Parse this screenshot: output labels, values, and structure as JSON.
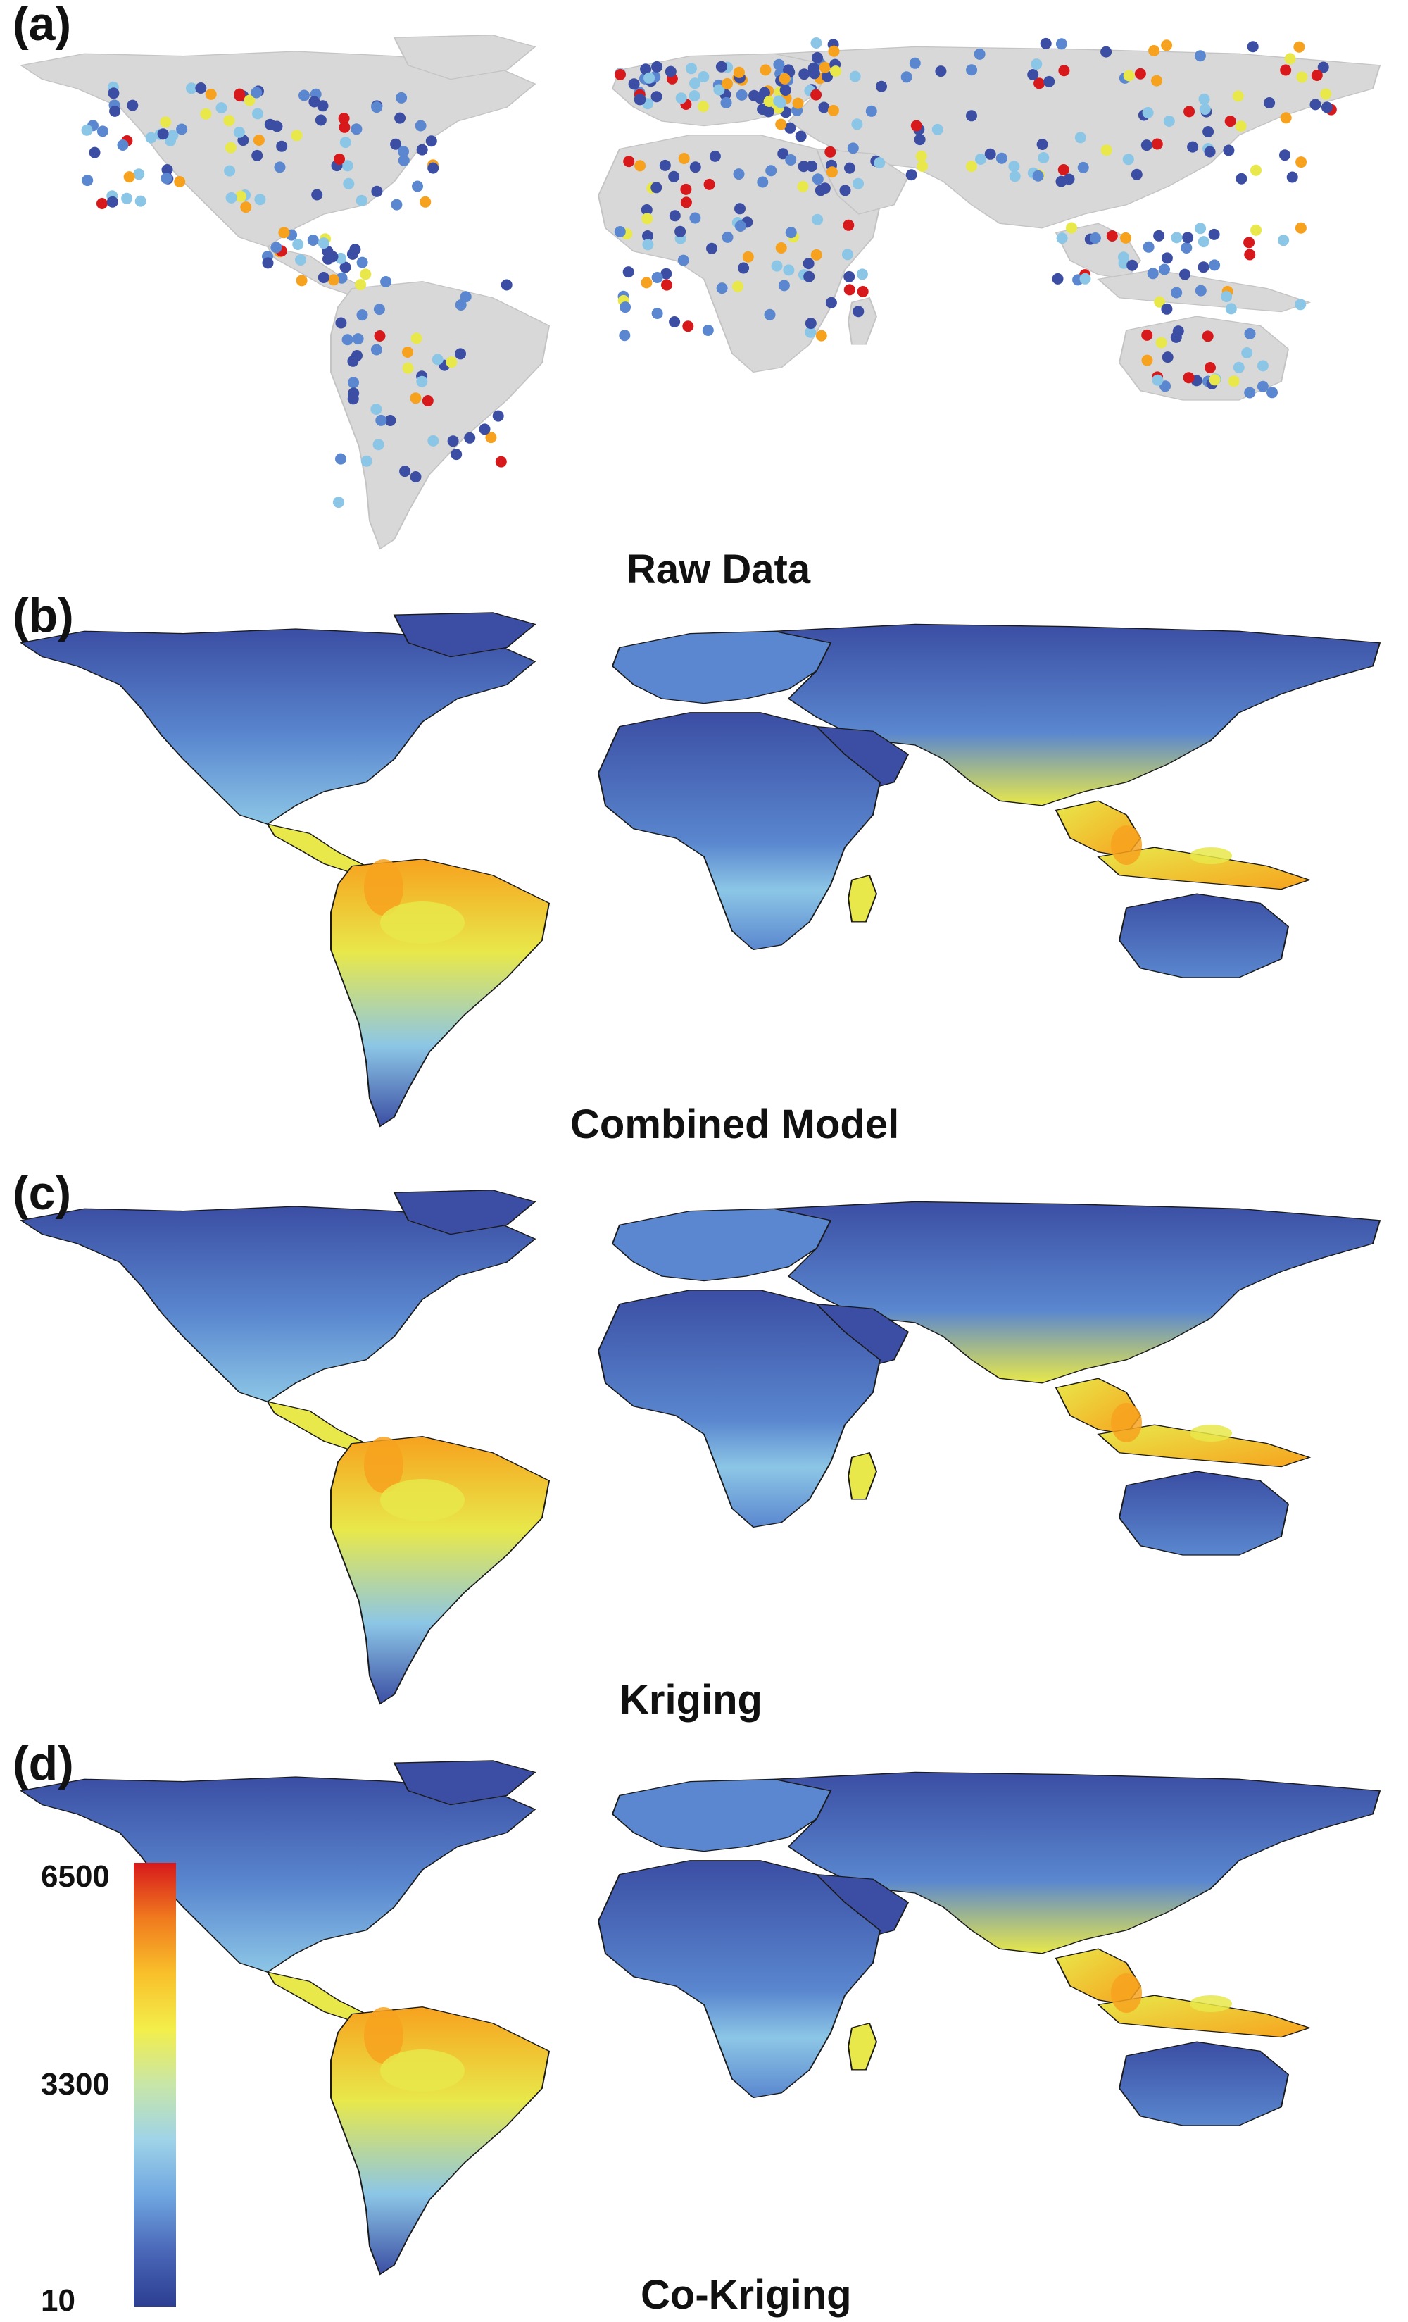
{
  "panels": [
    {
      "letter": "(a)",
      "title": "Raw Data",
      "kind": "points"
    },
    {
      "letter": "(b)",
      "title": "Combined Model",
      "kind": "surface"
    },
    {
      "letter": "(c)",
      "title": "Kriging",
      "kind": "surface"
    },
    {
      "letter": "(d)",
      "title": "Co-Kriging",
      "kind": "surface"
    }
  ],
  "legend": {
    "max_label": "6500",
    "mid_label": "3300",
    "min_label": "10",
    "colors": [
      "#2c3e91",
      "#4a67b8",
      "#6fa6e0",
      "#9fd3e8",
      "#c8e6a8",
      "#f3ee4a",
      "#f9c02b",
      "#f07a1e",
      "#d7191c"
    ]
  },
  "map_colors": {
    "land_gray": "#d8d8d8",
    "low": "#3b4ea3",
    "mid_low": "#5a87cf",
    "mid": "#8cc6e6",
    "mid_high": "#e8e84a",
    "high": "#f7a21e",
    "very_high": "#d7191c"
  }
}
